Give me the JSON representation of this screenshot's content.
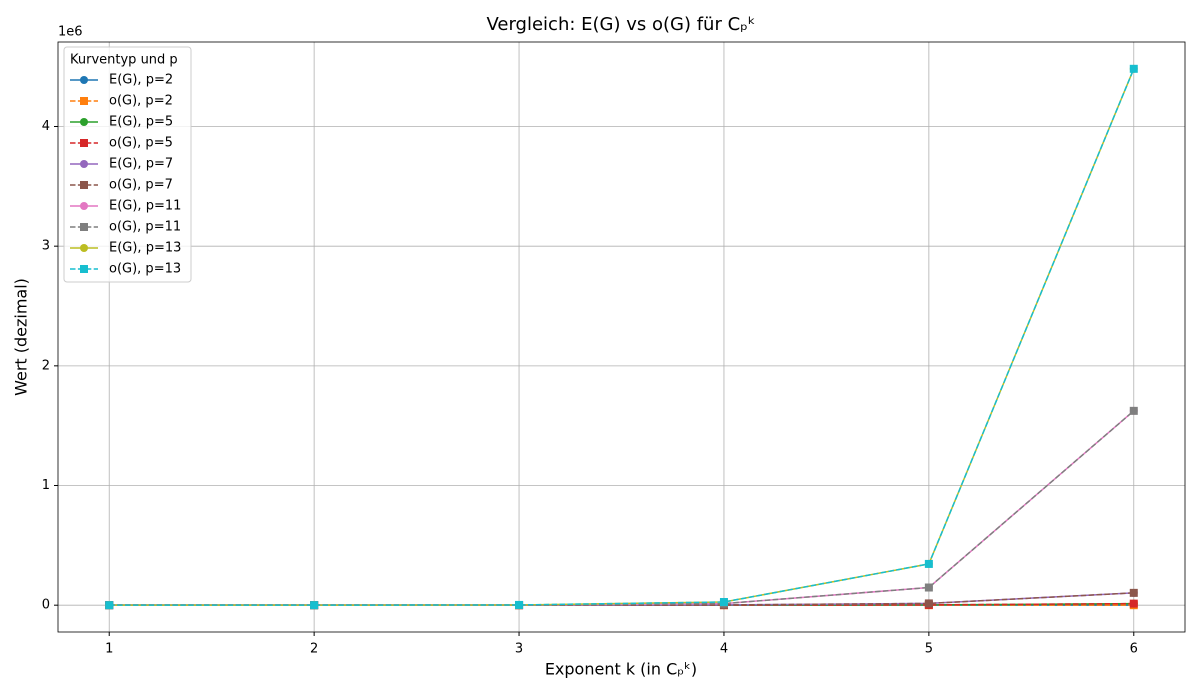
{
  "chart_data": {
    "type": "line",
    "title": "Vergleich: E(G) vs o(G) für Cₚᵏ",
    "x_label": "Exponent k (in Cₚᵏ)",
    "y_label": "Wert (dezimal)",
    "y_offset_label": "1e6",
    "legend_title": "Kurventyp und p",
    "legend_position": "upper left",
    "grid": true,
    "x": [
      1,
      2,
      3,
      4,
      5,
      6
    ],
    "xlim": [
      0.75,
      6.25
    ],
    "xticks": [
      1,
      2,
      3,
      4,
      5,
      6
    ],
    "ylim": [
      -224100,
      4706139
    ],
    "yticks": [
      {
        "value": 0,
        "label": "0"
      },
      {
        "value": 1000000,
        "label": "1"
      },
      {
        "value": 2000000,
        "label": "2"
      },
      {
        "value": 3000000,
        "label": "3"
      },
      {
        "value": 4000000,
        "label": "4"
      }
    ],
    "series": [
      {
        "name": "E(G), p=2",
        "color": "#1f77b4",
        "marker": "circle",
        "linestyle": "solid",
        "values": [
          1,
          3,
          5,
          11,
          21,
          43
        ]
      },
      {
        "name": "o(G), p=2",
        "color": "#ff7f0e",
        "marker": "square",
        "linestyle": "dashed",
        "values": [
          1,
          3,
          5,
          11,
          21,
          43
        ]
      },
      {
        "name": "E(G), p=5",
        "color": "#2ca02c",
        "marker": "circle",
        "linestyle": "solid",
        "values": [
          4,
          21,
          104,
          521,
          2604,
          13021
        ]
      },
      {
        "name": "o(G), p=5",
        "color": "#d62728",
        "marker": "square",
        "linestyle": "dashed",
        "values": [
          4,
          21,
          104,
          521,
          2604,
          13021
        ]
      },
      {
        "name": "E(G), p=7",
        "color": "#9467bd",
        "marker": "circle",
        "linestyle": "solid",
        "values": [
          6,
          43,
          300,
          2101,
          14706,
          102943
        ]
      },
      {
        "name": "o(G), p=7",
        "color": "#8c564b",
        "marker": "square",
        "linestyle": "dashed",
        "values": [
          6,
          43,
          300,
          2101,
          14706,
          102943
        ]
      },
      {
        "name": "E(G), p=11",
        "color": "#e377c2",
        "marker": "circle",
        "linestyle": "solid",
        "values": [
          10,
          111,
          1220,
          13421,
          147630,
          1623931
        ]
      },
      {
        "name": "o(G), p=11",
        "color": "#7f7f7f",
        "marker": "square",
        "linestyle": "dashed",
        "values": [
          10,
          111,
          1220,
          13421,
          147630,
          1623931
        ]
      },
      {
        "name": "E(G), p=13",
        "color": "#bcbd22",
        "marker": "circle",
        "linestyle": "solid",
        "values": [
          12,
          157,
          2040,
          26521,
          344772,
          4482037
        ]
      },
      {
        "name": "o(G), p=13",
        "color": "#17becf",
        "marker": "square",
        "linestyle": "dashed",
        "values": [
          12,
          157,
          2040,
          26521,
          344772,
          4482037
        ]
      }
    ]
  }
}
